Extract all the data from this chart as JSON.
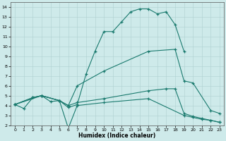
{
  "xlabel": "Humidex (Indice chaleur)",
  "bg_color": "#ceeaea",
  "line_color": "#1a7a6e",
  "grid_color": "#afd0d0",
  "xlim": [
    -0.5,
    23.5
  ],
  "ylim": [
    2,
    14.5
  ],
  "xticks": [
    0,
    1,
    2,
    3,
    4,
    5,
    6,
    7,
    8,
    9,
    10,
    11,
    12,
    13,
    14,
    15,
    16,
    17,
    18,
    19,
    20,
    21,
    22,
    23
  ],
  "yticks": [
    2,
    3,
    4,
    5,
    6,
    7,
    8,
    9,
    10,
    11,
    12,
    13,
    14
  ],
  "line1_x": [
    0,
    1,
    2,
    3,
    4,
    5,
    6,
    7,
    8,
    9,
    10,
    11,
    12,
    13,
    14,
    15,
    16,
    17,
    18,
    19
  ],
  "line1_y": [
    4.1,
    3.7,
    4.8,
    5.0,
    4.4,
    4.5,
    3.8,
    4.1,
    7.2,
    9.5,
    11.5,
    11.5,
    12.5,
    13.5,
    13.8,
    13.8,
    13.3,
    13.5,
    12.2,
    9.5
  ],
  "line2_x": [
    0,
    2,
    3,
    5,
    6,
    7,
    10,
    15,
    18,
    19,
    20,
    22,
    23
  ],
  "line2_y": [
    4.1,
    4.8,
    5.0,
    4.5,
    4.0,
    6.0,
    7.5,
    9.5,
    9.7,
    6.5,
    6.3,
    3.5,
    3.2
  ],
  "line3_x": [
    0,
    2,
    3,
    5,
    6,
    7,
    10,
    15,
    17,
    18,
    19,
    20,
    21,
    22,
    23
  ],
  "line3_y": [
    4.1,
    4.8,
    5.0,
    4.5,
    4.0,
    4.3,
    4.7,
    5.5,
    5.7,
    5.7,
    3.2,
    2.9,
    2.7,
    2.5,
    2.3
  ],
  "line4_x": [
    0,
    3,
    5,
    6,
    7,
    10,
    15,
    19,
    20,
    21,
    22,
    23
  ],
  "line4_y": [
    4.1,
    5.0,
    4.5,
    1.7,
    4.0,
    4.3,
    4.7,
    3.0,
    2.8,
    2.6,
    2.5,
    2.3
  ]
}
